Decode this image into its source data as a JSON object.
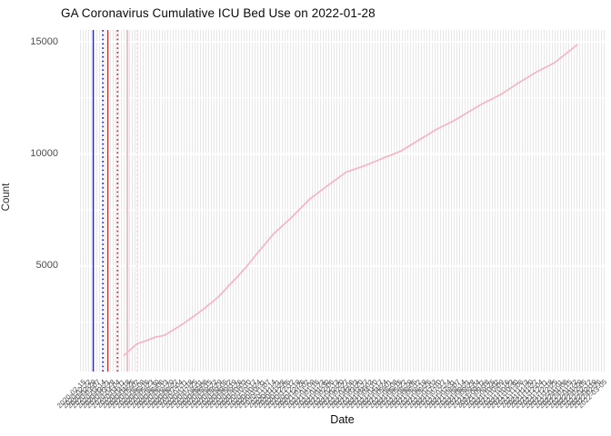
{
  "title": "GA Coronavirus Cumulative ICU Bed Use on 2022-01-28",
  "colors": {
    "background": "#ffffff",
    "panel_stripe": "#e7e7e7",
    "horizontal_gridline": "#ffffff",
    "series_line": "#f8b3c0",
    "marker_blue": "#2323cd",
    "marker_red": "#dd2020",
    "marker_pink": "#f9b9c5",
    "marker_pink_light": "#fcd4dc",
    "axis_text": "#4d4d4d",
    "title_text": "#0a0a0a"
  },
  "chart_data": {
    "type": "line",
    "title": "GA Coronavirus Cumulative ICU Bed Use on 2022-01-28",
    "xlabel": "Date",
    "ylabel": "Count",
    "ylim": [
      300,
      15530
    ],
    "y_major_ticks": [
      5000,
      10000,
      15000
    ],
    "y_minor_gridlines": [
      2500,
      7500,
      12500
    ],
    "grid": "on",
    "legend": "none",
    "x_axis": {
      "start_date": "2020-02-12",
      "end_date": "2022-03-08",
      "tick_label_start": "2020-02-15",
      "tick_interval_days": 7,
      "tick_count": 108,
      "tick_labels_legible": false,
      "tick_angle_deg": 45
    },
    "series": [
      {
        "name": "cumulative-icu-bed-use",
        "color": "#f8b3c0",
        "points": [
          [
            "2020-04-15",
            1010
          ],
          [
            "2020-05-04",
            1540
          ],
          [
            "2020-05-17",
            1670
          ],
          [
            "2020-05-30",
            1830
          ],
          [
            "2020-06-12",
            1910
          ],
          [
            "2020-06-25",
            2150
          ],
          [
            "2020-07-08",
            2400
          ],
          [
            "2020-07-21",
            2680
          ],
          [
            "2020-08-03",
            2970
          ],
          [
            "2020-08-16",
            3290
          ],
          [
            "2020-08-29",
            3620
          ],
          [
            "2020-09-11",
            4060
          ],
          [
            "2020-09-25",
            4510
          ],
          [
            "2020-10-08",
            4960
          ],
          [
            "2020-10-23",
            5530
          ],
          [
            "2020-11-03",
            5940
          ],
          [
            "2020-11-16",
            6420
          ],
          [
            "2020-12-12",
            7160
          ],
          [
            "2021-01-07",
            7970
          ],
          [
            "2021-02-02",
            8580
          ],
          [
            "2021-03-01",
            9190
          ],
          [
            "2021-03-27",
            9470
          ],
          [
            "2021-04-22",
            9800
          ],
          [
            "2021-05-18",
            10120
          ],
          [
            "2021-06-13",
            10610
          ],
          [
            "2021-07-09",
            11100
          ],
          [
            "2021-08-04",
            11500
          ],
          [
            "2021-09-13",
            12240
          ],
          [
            "2021-10-09",
            12640
          ],
          [
            "2021-11-04",
            13170
          ],
          [
            "2021-11-30",
            13660
          ],
          [
            "2021-12-26",
            14070
          ],
          [
            "2022-01-28",
            14880
          ]
        ]
      }
    ],
    "event_markers": [
      {
        "name": "event-line-blue-solid",
        "date": "2020-03-02",
        "color": "#2323cd",
        "style": "solid"
      },
      {
        "name": "event-line-blue-dotted",
        "date": "2020-03-16",
        "color": "#2323cd",
        "style": "dotted"
      },
      {
        "name": "event-line-red-solid",
        "date": "2020-03-23",
        "color": "#dd2020",
        "style": "solid"
      },
      {
        "name": "event-line-red-dotted",
        "date": "2020-04-06",
        "color": "#dd2020",
        "style": "dotted"
      },
      {
        "name": "event-line-pink-solid",
        "date": "2020-04-20",
        "color": "#f9b9c5",
        "style": "solid"
      },
      {
        "name": "event-line-pink-dotted",
        "date": "2020-05-04",
        "color": "#fcd4dc",
        "style": "dotted"
      }
    ]
  }
}
